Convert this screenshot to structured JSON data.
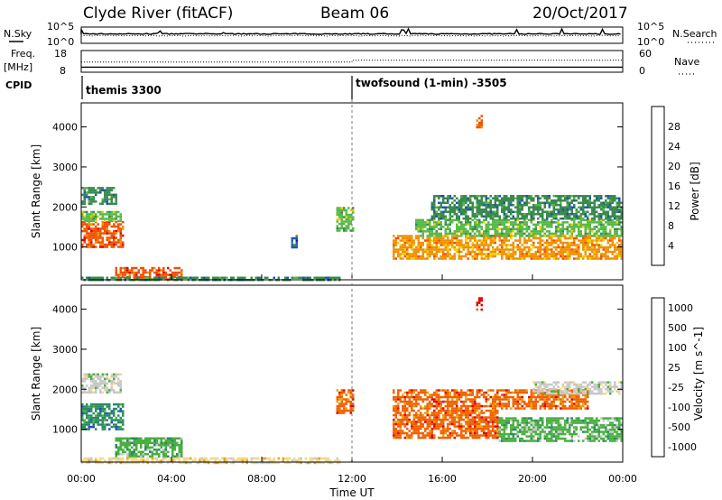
{
  "header": {
    "station": "Clyde River (fitACF)",
    "beam": "Beam 06",
    "date": "20/Oct/2017"
  },
  "top_panel": {
    "nsky_label": "N.Sky",
    "nsearch_label": "N.Search",
    "left_ticks": [
      "10^5",
      "10^0"
    ],
    "right_ticks": [
      "10^5",
      "10^0"
    ]
  },
  "freq_panel": {
    "freq_label": "Freq.",
    "freq_unit": "[MHz]",
    "nave_label": "Nave",
    "left_ticks": [
      "18",
      "8"
    ],
    "right_ticks": [
      "60",
      "0"
    ],
    "freq_value_mhz": 10.3,
    "nave_value_before": 28,
    "nave_value_after": 33
  },
  "cpid": {
    "label": "CPID",
    "modes": [
      {
        "name": "themis 3300",
        "start_hour": 0
      },
      {
        "name": "twofsound (1-min) -3505",
        "start_hour": 12
      }
    ]
  },
  "chart_data": [
    {
      "type": "heatmap",
      "name": "Power",
      "xlabel": "",
      "ylabel": "Slant Range [km]",
      "xlim": [
        0,
        24
      ],
      "ylim": [
        180,
        4600
      ],
      "yticks": [
        1000,
        2000,
        3000,
        4000
      ],
      "colorbar_label": "Power [dB]",
      "colorbar_ticks": [
        4,
        8,
        12,
        16,
        20,
        24,
        28
      ],
      "colorbar_range": [
        0,
        32
      ],
      "colors": [
        "#0000ee",
        "#2255aa",
        "#3a8a50",
        "#58b848",
        "#f0d000",
        "#f09000",
        "#f05000",
        "#e00000"
      ],
      "regions": [
        {
          "t": [
            0.0,
            1.9
          ],
          "r": [
            1000,
            1650
          ],
          "level": 24
        },
        {
          "t": [
            0.0,
            1.8
          ],
          "r": [
            1650,
            1900
          ],
          "level": 12
        },
        {
          "t": [
            0.0,
            1.6
          ],
          "r": [
            2100,
            2500
          ],
          "level": 10
        },
        {
          "t": [
            1.5,
            4.5
          ],
          "r": [
            200,
            500
          ],
          "level": 26
        },
        {
          "t": [
            0.0,
            11.5
          ],
          "r": [
            180,
            260
          ],
          "level": 8
        },
        {
          "t": [
            11.3,
            12.1
          ],
          "r": [
            1400,
            2000
          ],
          "level": 14
        },
        {
          "t": [
            9.3,
            9.6
          ],
          "r": [
            1000,
            1300
          ],
          "level": 6
        },
        {
          "t": [
            13.8,
            24.0
          ],
          "r": [
            700,
            1300
          ],
          "level": 22
        },
        {
          "t": [
            14.8,
            24.0
          ],
          "r": [
            1300,
            1700
          ],
          "level": 14
        },
        {
          "t": [
            15.5,
            24.0
          ],
          "r": [
            1700,
            2300
          ],
          "level": 10
        },
        {
          "t": [
            17.5,
            17.8
          ],
          "r": [
            4000,
            4300
          ],
          "level": 26
        }
      ]
    },
    {
      "type": "heatmap",
      "name": "Velocity",
      "xlabel": "Time UT",
      "ylabel": "Slant Range [km]",
      "xlim": [
        0,
        24
      ],
      "ylim": [
        180,
        4600
      ],
      "xticks": [
        "00:00",
        "04:00",
        "08:00",
        "12:00",
        "16:00",
        "20:00",
        "00:00"
      ],
      "yticks": [
        1000,
        2000,
        3000,
        4000
      ],
      "colorbar_label": "Velocity [m s^-1]",
      "colorbar_ticks": [
        1000,
        500,
        100,
        25,
        -25,
        -100,
        -500,
        -1000
      ],
      "colors": [
        "#2050c0",
        "#2a8a60",
        "#48b040",
        "#c8c8c8",
        "#f0d890",
        "#f0a000",
        "#f06000",
        "#e00000"
      ],
      "regions": [
        {
          "t": [
            0.0,
            1.9
          ],
          "r": [
            1000,
            1650
          ],
          "level": 400
        },
        {
          "t": [
            0.0,
            1.8
          ],
          "r": [
            1900,
            2400
          ],
          "level": 20
        },
        {
          "t": [
            1.5,
            4.5
          ],
          "r": [
            300,
            800
          ],
          "level": 80
        },
        {
          "t": [
            0.0,
            11.5
          ],
          "r": [
            180,
            300
          ],
          "level": -20
        },
        {
          "t": [
            11.3,
            12.1
          ],
          "r": [
            1400,
            2000
          ],
          "level": -300
        },
        {
          "t": [
            13.8,
            18.5
          ],
          "r": [
            800,
            2000
          ],
          "level": -600
        },
        {
          "t": [
            18.5,
            24.0
          ],
          "r": [
            700,
            1300
          ],
          "level": 300
        },
        {
          "t": [
            18.5,
            22.5
          ],
          "r": [
            1500,
            2000
          ],
          "level": -400
        },
        {
          "t": [
            20.0,
            24.0
          ],
          "r": [
            1900,
            2200
          ],
          "level": 20
        },
        {
          "t": [
            17.5,
            17.8
          ],
          "r": [
            4000,
            4300
          ],
          "level": -900
        }
      ]
    }
  ]
}
